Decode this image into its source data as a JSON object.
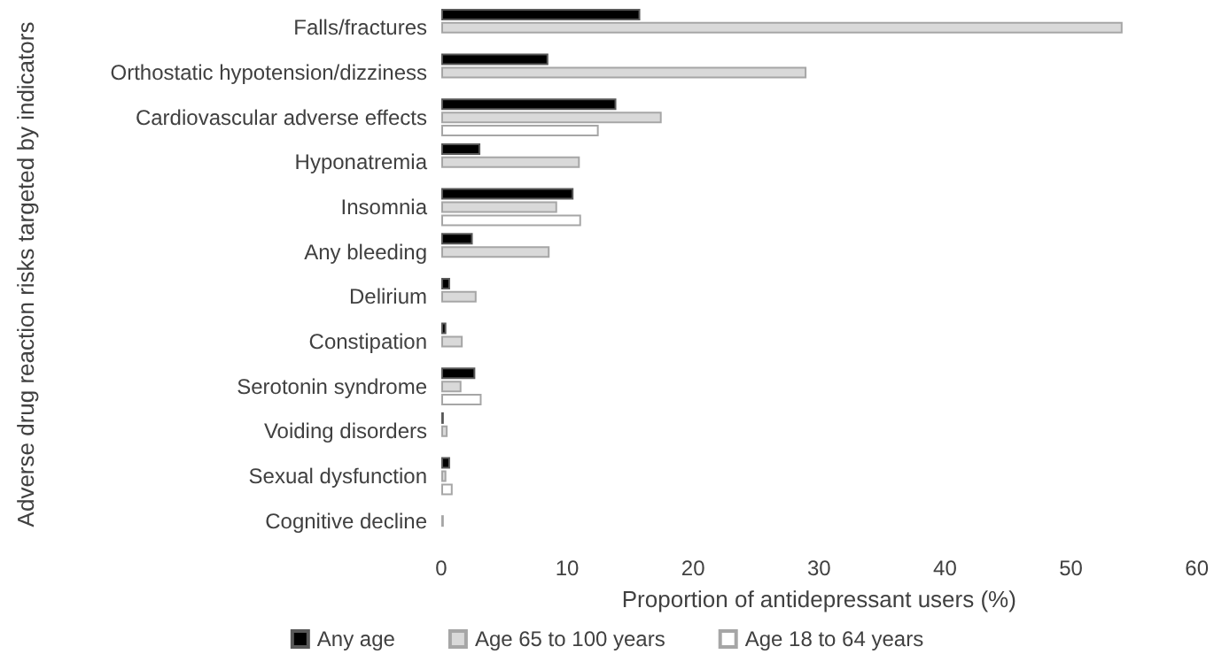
{
  "chart_data": {
    "type": "bar",
    "orientation": "horizontal",
    "categories": [
      "Falls/fractures",
      "Orthostatic hypotension/dizziness",
      "Cardiovascular adverse effects",
      "Hyponatremia",
      "Insomnia",
      "Any bleeding",
      "Delirium",
      "Constipation",
      "Serotonin syndrome",
      "Voiding disorders",
      "Sexual dysfunction",
      "Cognitive decline"
    ],
    "series": [
      {
        "name": "Any age",
        "color": "#000000",
        "values": [
          15.8,
          8.5,
          13.9,
          3.1,
          10.5,
          2.5,
          0.7,
          0.4,
          2.7,
          0.2,
          0.7,
          null
        ]
      },
      {
        "name": "Age 65 to 100 years",
        "color": "#d9d9d9",
        "values": [
          54.1,
          29.0,
          17.5,
          11.0,
          9.2,
          8.6,
          2.8,
          1.7,
          1.6,
          0.5,
          0.4,
          0.2
        ]
      },
      {
        "name": "Age 18 to 64 years",
        "color": "#ffffff",
        "values": [
          null,
          null,
          12.5,
          null,
          11.1,
          null,
          null,
          null,
          3.2,
          null,
          0.9,
          null
        ]
      }
    ],
    "xlabel": "Proportion of antidepressant users (%)",
    "ylabel": "Adverse drug reaction risks targeted by indicators",
    "xlim": [
      0,
      60
    ],
    "xticks": [
      0,
      10,
      20,
      30,
      40,
      50,
      60
    ],
    "grid": false,
    "legend": "bottom"
  }
}
